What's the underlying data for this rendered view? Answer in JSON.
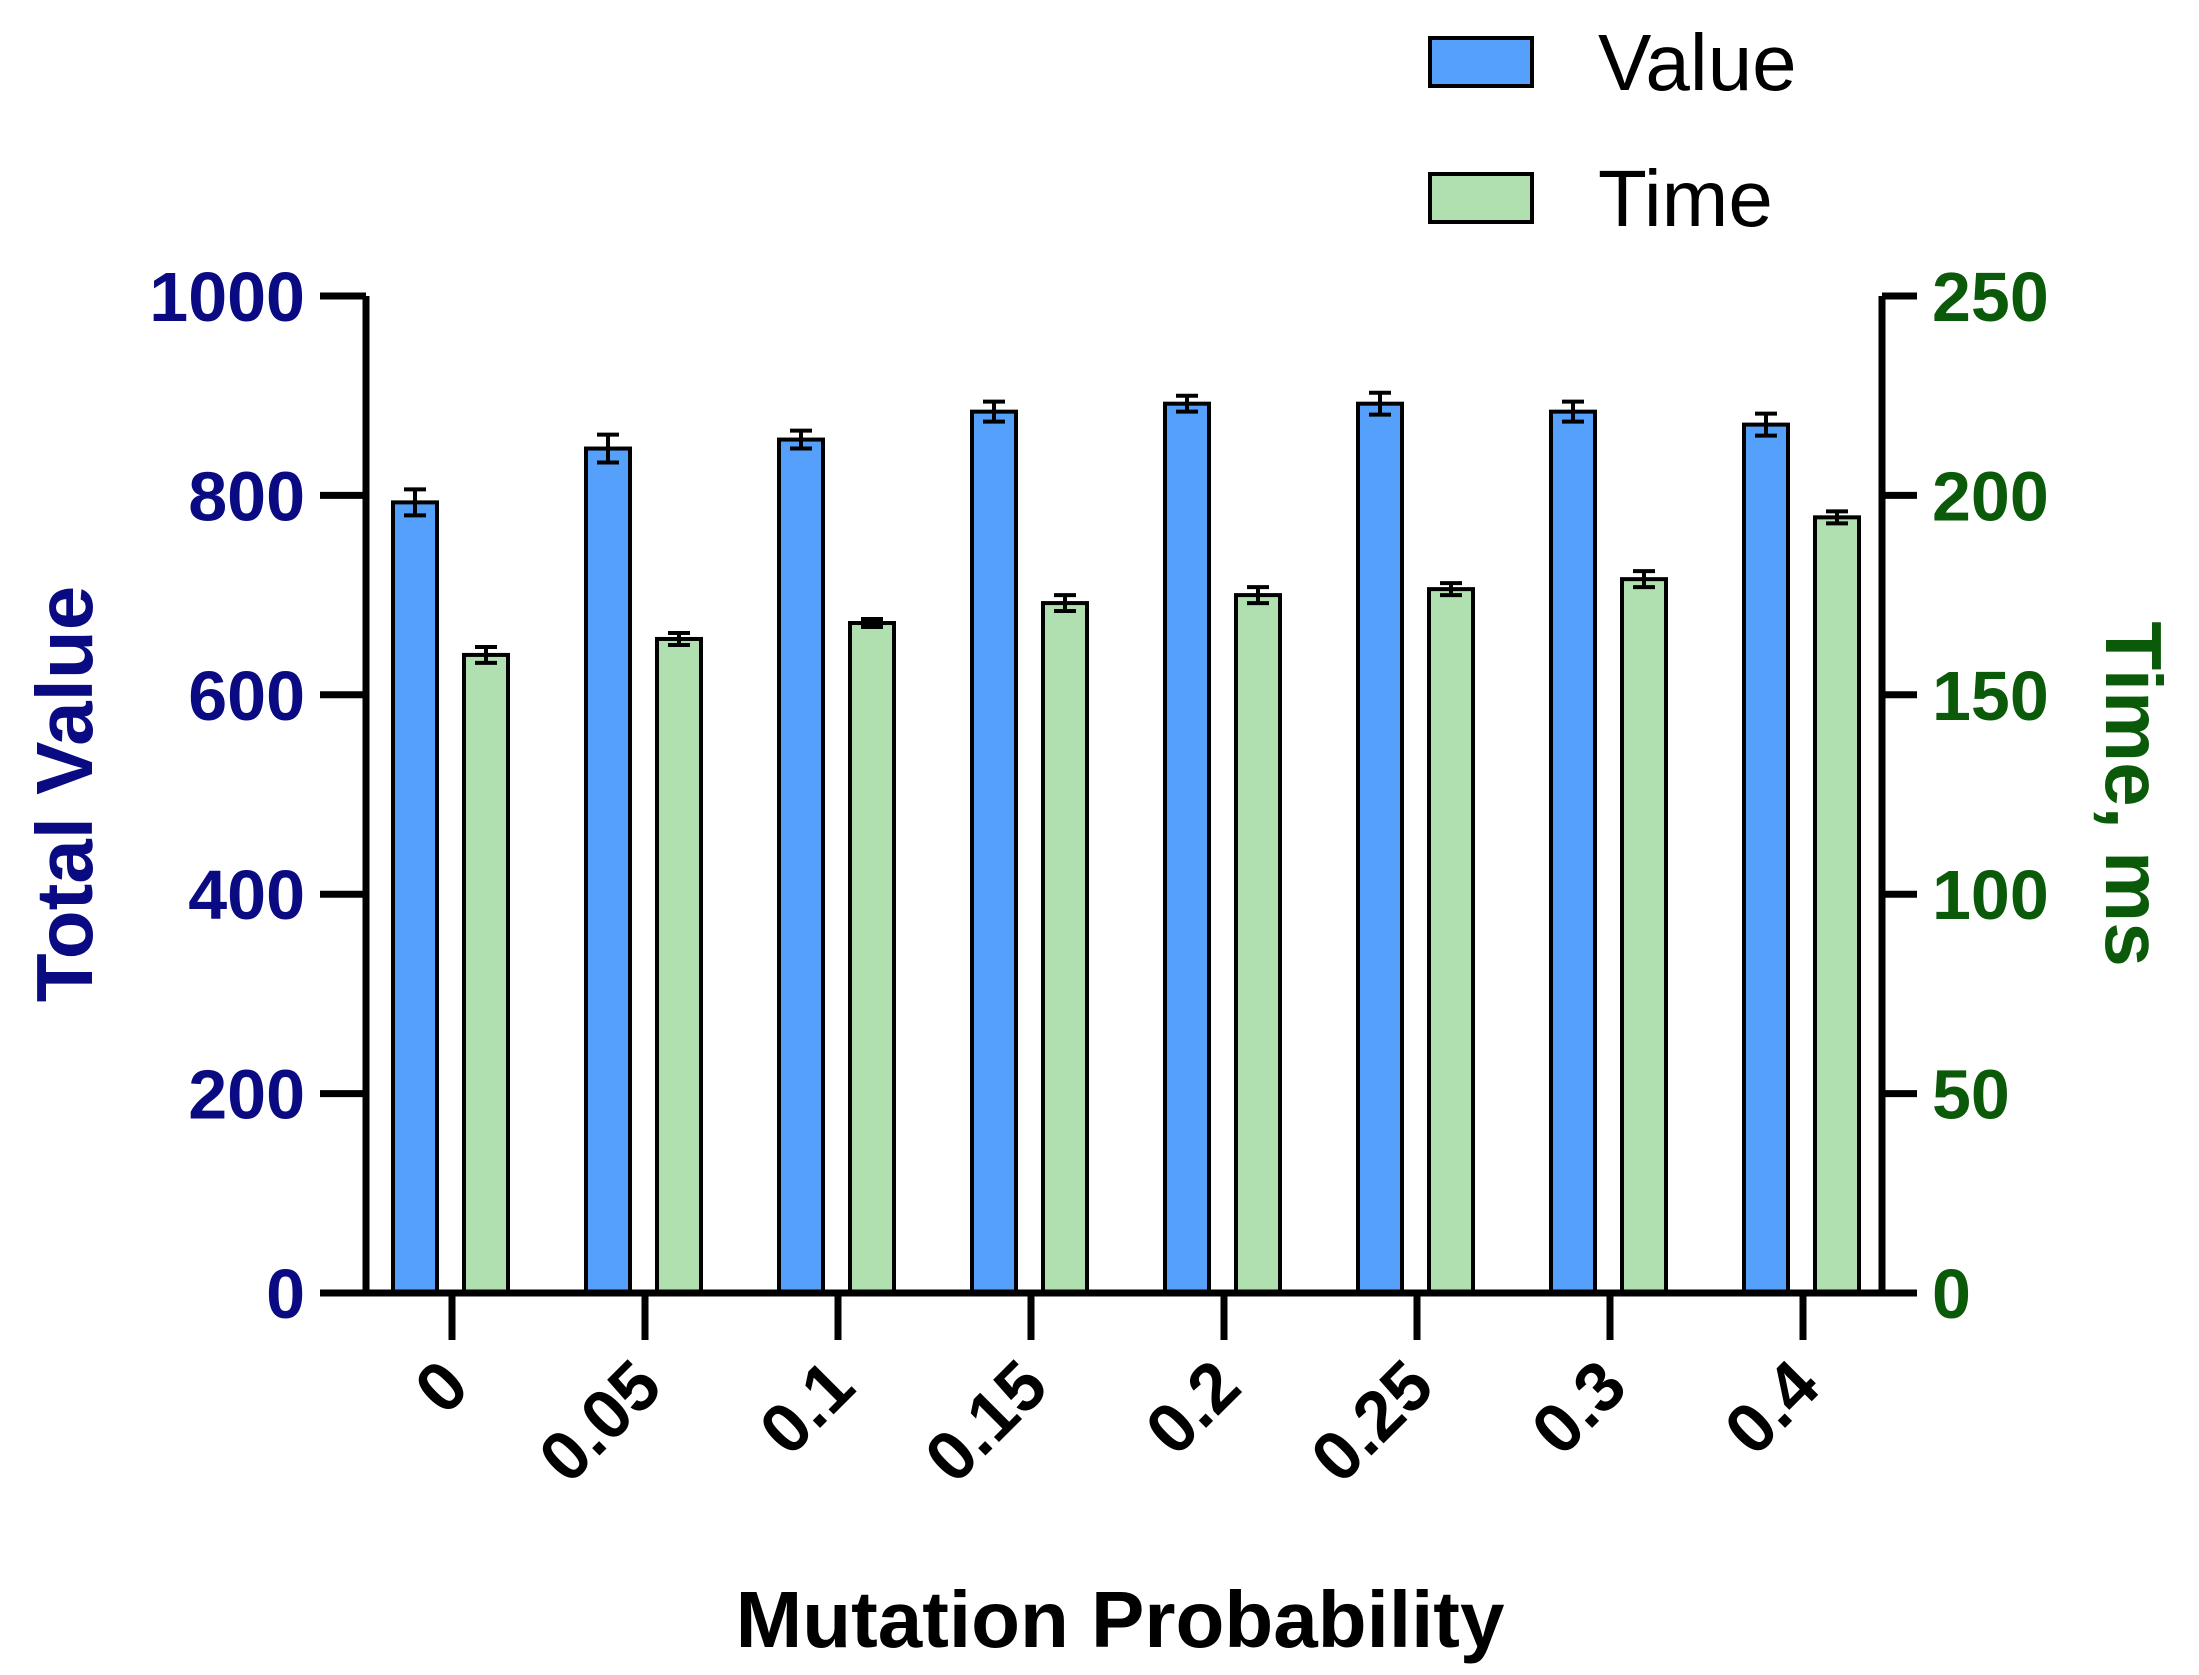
{
  "chart_data": {
    "type": "bar",
    "title": "",
    "xlabel": "Mutation Probability",
    "ylabel": "Total Value",
    "y2label": "Time, ms",
    "categories": [
      "0",
      "0.05",
      "0.1",
      "0.15",
      "0.2",
      "0.25",
      "0.3",
      "0.4"
    ],
    "ylim": [
      0,
      1000
    ],
    "y2lim": [
      0,
      250
    ],
    "yticks": [
      0,
      200,
      400,
      600,
      800,
      1000
    ],
    "y2ticks": [
      0,
      50,
      100,
      150,
      200,
      250
    ],
    "yticklabels": [
      "0",
      "200",
      "400",
      "600",
      "800",
      "1000"
    ],
    "y2ticklabels": [
      "0",
      "50",
      "100",
      "150",
      "200",
      "250"
    ],
    "grid": false,
    "legend_position": "top-right",
    "series": [
      {
        "name": "Value",
        "axis": "left",
        "color": "#55A0FB",
        "values": [
          793,
          847,
          856,
          884,
          892,
          892,
          884,
          871
        ],
        "errors": [
          13,
          14,
          9,
          10,
          8,
          11,
          10,
          11
        ]
      },
      {
        "name": "Time",
        "axis": "right",
        "color": "#B0E0B0",
        "values": [
          160,
          164,
          168,
          173,
          175,
          176.5,
          179,
          194.5
        ],
        "errors": [
          2,
          1.5,
          1,
          2,
          2,
          1.5,
          2,
          1.5
        ]
      }
    ],
    "colors": {
      "left_axis_text": "#0A0A82",
      "right_axis_text": "#0A5A0A",
      "axis_line": "#000000",
      "bar_outline": "#000000"
    }
  }
}
